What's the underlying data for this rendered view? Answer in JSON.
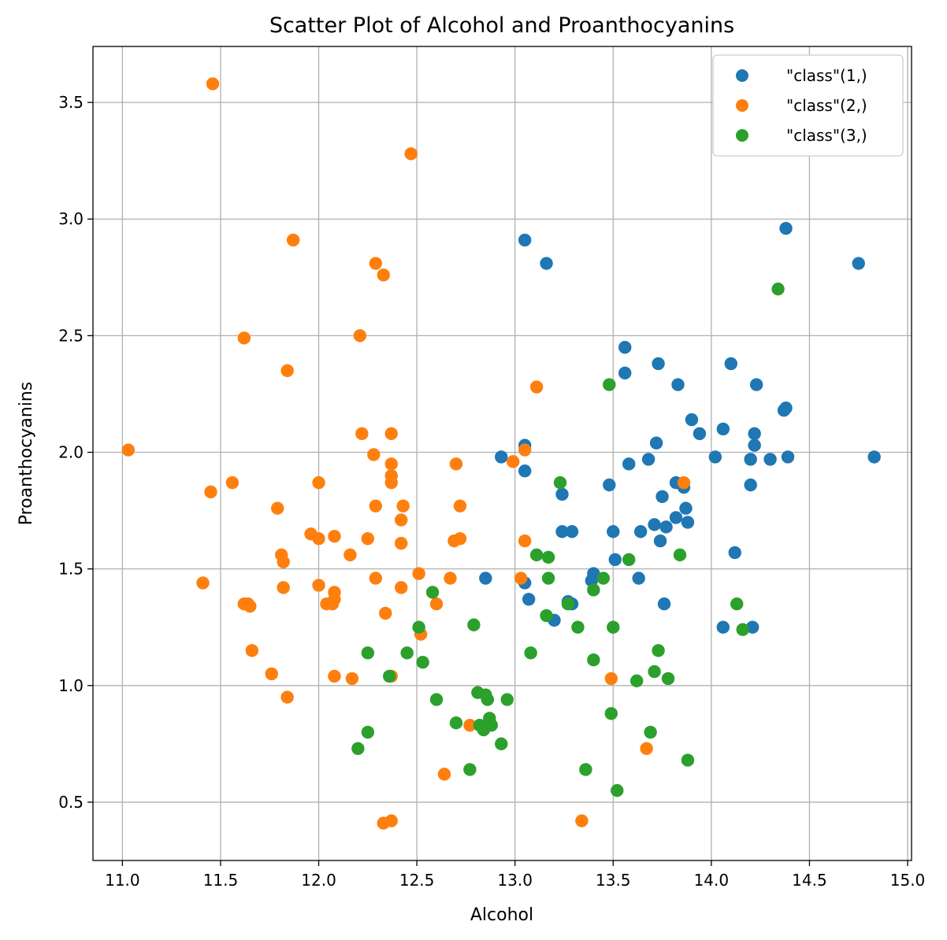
{
  "chart_data": {
    "type": "scatter",
    "title": "Scatter Plot of Alcohol and Proanthocyanins",
    "xlabel": "Alcohol",
    "ylabel": "Proanthocyanins",
    "xlim": [
      10.85,
      15.02
    ],
    "ylim": [
      0.25,
      3.74
    ],
    "xticks": [
      11.0,
      11.5,
      12.0,
      12.5,
      13.0,
      13.5,
      14.0,
      14.5,
      15.0
    ],
    "xtick_labels": [
      "11.0",
      "11.5",
      "12.0",
      "12.5",
      "13.0",
      "13.5",
      "14.0",
      "14.5",
      "15.0"
    ],
    "yticks": [
      0.5,
      1.0,
      1.5,
      2.0,
      2.5,
      3.0,
      3.5
    ],
    "ytick_labels": [
      "0.5",
      "1.0",
      "1.5",
      "2.0",
      "2.5",
      "3.0",
      "3.5"
    ],
    "grid": true,
    "legend_position": "top-right",
    "series": [
      {
        "name": "\"class\"(1,)",
        "color": "#1f77b4",
        "points": [
          [
            13.05,
            2.91
          ],
          [
            13.16,
            2.81
          ],
          [
            14.38,
            2.96
          ],
          [
            14.75,
            2.81
          ],
          [
            13.56,
            2.45
          ],
          [
            13.56,
            2.34
          ],
          [
            13.73,
            2.38
          ],
          [
            14.1,
            2.38
          ],
          [
            14.23,
            2.29
          ],
          [
            13.83,
            2.29
          ],
          [
            14.37,
            2.18
          ],
          [
            14.38,
            2.19
          ],
          [
            13.9,
            2.14
          ],
          [
            13.94,
            2.08
          ],
          [
            14.06,
            2.1
          ],
          [
            14.22,
            2.08
          ],
          [
            14.22,
            2.03
          ],
          [
            13.05,
            2.03
          ],
          [
            13.72,
            2.04
          ],
          [
            12.93,
            1.98
          ],
          [
            13.05,
            1.92
          ],
          [
            13.58,
            1.95
          ],
          [
            13.68,
            1.97
          ],
          [
            14.02,
            1.98
          ],
          [
            14.2,
            1.97
          ],
          [
            14.3,
            1.97
          ],
          [
            14.39,
            1.98
          ],
          [
            14.83,
            1.98
          ],
          [
            13.48,
            1.86
          ],
          [
            13.82,
            1.87
          ],
          [
            13.86,
            1.85
          ],
          [
            14.2,
            1.86
          ],
          [
            13.24,
            1.82
          ],
          [
            13.75,
            1.81
          ],
          [
            13.87,
            1.76
          ],
          [
            13.82,
            1.72
          ],
          [
            13.71,
            1.69
          ],
          [
            13.77,
            1.68
          ],
          [
            13.88,
            1.7
          ],
          [
            13.64,
            1.66
          ],
          [
            13.24,
            1.66
          ],
          [
            13.29,
            1.66
          ],
          [
            13.5,
            1.66
          ],
          [
            13.74,
            1.62
          ],
          [
            14.12,
            1.57
          ],
          [
            13.51,
            1.54
          ],
          [
            12.85,
            1.46
          ],
          [
            13.05,
            1.44
          ],
          [
            13.4,
            1.48
          ],
          [
            13.39,
            1.45
          ],
          [
            13.63,
            1.46
          ],
          [
            13.07,
            1.37
          ],
          [
            13.27,
            1.36
          ],
          [
            13.29,
            1.35
          ],
          [
            13.76,
            1.35
          ],
          [
            13.2,
            1.28
          ],
          [
            14.06,
            1.25
          ],
          [
            14.21,
            1.25
          ]
        ]
      },
      {
        "name": "\"class\"(2,)",
        "color": "#ff7f0e",
        "points": [
          [
            11.46,
            3.58
          ],
          [
            12.47,
            3.28
          ],
          [
            11.87,
            2.91
          ],
          [
            12.29,
            2.81
          ],
          [
            12.33,
            2.76
          ],
          [
            12.21,
            2.5
          ],
          [
            11.62,
            2.49
          ],
          [
            11.84,
            2.35
          ],
          [
            13.11,
            2.28
          ],
          [
            12.22,
            2.08
          ],
          [
            12.37,
            2.08
          ],
          [
            11.03,
            2.01
          ],
          [
            12.28,
            1.99
          ],
          [
            13.05,
            2.01
          ],
          [
            12.99,
            1.96
          ],
          [
            12.37,
            1.95
          ],
          [
            12.7,
            1.95
          ],
          [
            12.37,
            1.9
          ],
          [
            12.37,
            1.87
          ],
          [
            11.56,
            1.87
          ],
          [
            12.0,
            1.87
          ],
          [
            13.86,
            1.87
          ],
          [
            11.45,
            1.83
          ],
          [
            12.29,
            1.77
          ],
          [
            12.43,
            1.77
          ],
          [
            12.72,
            1.77
          ],
          [
            11.79,
            1.76
          ],
          [
            12.42,
            1.71
          ],
          [
            11.96,
            1.65
          ],
          [
            12.08,
            1.64
          ],
          [
            12.0,
            1.63
          ],
          [
            12.25,
            1.63
          ],
          [
            12.72,
            1.63
          ],
          [
            12.69,
            1.62
          ],
          [
            13.05,
            1.62
          ],
          [
            12.42,
            1.61
          ],
          [
            11.81,
            1.56
          ],
          [
            12.16,
            1.56
          ],
          [
            11.82,
            1.53
          ],
          [
            12.51,
            1.48
          ],
          [
            12.29,
            1.46
          ],
          [
            12.67,
            1.46
          ],
          [
            13.03,
            1.46
          ],
          [
            11.41,
            1.44
          ],
          [
            12.0,
            1.43
          ],
          [
            11.82,
            1.42
          ],
          [
            12.42,
            1.42
          ],
          [
            12.08,
            1.4
          ],
          [
            12.08,
            1.37
          ],
          [
            11.62,
            1.35
          ],
          [
            11.64,
            1.35
          ],
          [
            11.65,
            1.34
          ],
          [
            12.04,
            1.35
          ],
          [
            12.07,
            1.35
          ],
          [
            12.6,
            1.35
          ],
          [
            12.34,
            1.31
          ],
          [
            12.52,
            1.22
          ],
          [
            11.66,
            1.15
          ],
          [
            11.76,
            1.05
          ],
          [
            12.08,
            1.04
          ],
          [
            12.37,
            1.04
          ],
          [
            12.17,
            1.03
          ],
          [
            13.49,
            1.03
          ],
          [
            11.84,
            0.95
          ],
          [
            12.77,
            0.83
          ],
          [
            13.67,
            0.73
          ],
          [
            12.64,
            0.62
          ],
          [
            12.33,
            0.41
          ],
          [
            12.37,
            0.42
          ],
          [
            13.34,
            0.42
          ]
        ]
      },
      {
        "name": "\"class\"(3,)",
        "color": "#2ca02c",
        "points": [
          [
            14.34,
            2.7
          ],
          [
            13.48,
            2.29
          ],
          [
            13.23,
            1.87
          ],
          [
            13.11,
            1.56
          ],
          [
            13.17,
            1.55
          ],
          [
            13.58,
            1.54
          ],
          [
            13.84,
            1.56
          ],
          [
            13.17,
            1.46
          ],
          [
            13.45,
            1.46
          ],
          [
            13.4,
            1.41
          ],
          [
            12.58,
            1.4
          ],
          [
            13.27,
            1.35
          ],
          [
            14.13,
            1.35
          ],
          [
            13.16,
            1.3
          ],
          [
            12.79,
            1.26
          ],
          [
            12.51,
            1.25
          ],
          [
            13.32,
            1.25
          ],
          [
            13.5,
            1.25
          ],
          [
            14.16,
            1.24
          ],
          [
            12.25,
            1.14
          ],
          [
            12.45,
            1.14
          ],
          [
            13.08,
            1.14
          ],
          [
            13.73,
            1.15
          ],
          [
            12.53,
            1.1
          ],
          [
            13.4,
            1.11
          ],
          [
            12.36,
            1.04
          ],
          [
            13.71,
            1.06
          ],
          [
            13.62,
            1.02
          ],
          [
            13.78,
            1.03
          ],
          [
            12.81,
            0.97
          ],
          [
            12.85,
            0.96
          ],
          [
            12.86,
            0.94
          ],
          [
            12.6,
            0.94
          ],
          [
            12.96,
            0.94
          ],
          [
            12.87,
            0.86
          ],
          [
            12.7,
            0.84
          ],
          [
            12.82,
            0.83
          ],
          [
            12.88,
            0.83
          ],
          [
            12.84,
            0.81
          ],
          [
            13.49,
            0.88
          ],
          [
            12.25,
            0.8
          ],
          [
            13.69,
            0.8
          ],
          [
            12.93,
            0.75
          ],
          [
            12.2,
            0.73
          ],
          [
            13.88,
            0.68
          ],
          [
            12.77,
            0.64
          ],
          [
            13.36,
            0.64
          ],
          [
            13.52,
            0.55
          ]
        ]
      }
    ]
  }
}
